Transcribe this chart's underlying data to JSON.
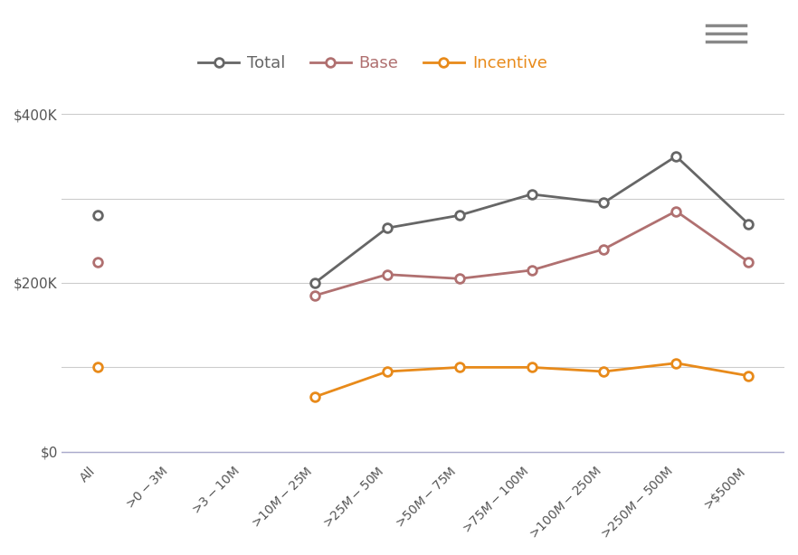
{
  "categories": [
    "All",
    ">$0-$3M",
    ">$3-$10M",
    ">$10M-$25M",
    ">$25M-$50M",
    ">$50M-$75M",
    ">$75M-$100M",
    ">$100M-$250M",
    ">$250M-$500M",
    ">$500M"
  ],
  "total": [
    280000,
    null,
    null,
    200000,
    265000,
    280000,
    305000,
    295000,
    350000,
    270000
  ],
  "base": [
    225000,
    null,
    null,
    185000,
    210000,
    205000,
    215000,
    240000,
    285000,
    225000
  ],
  "incentive": [
    100000,
    null,
    null,
    65000,
    95000,
    100000,
    100000,
    95000,
    105000,
    90000
  ],
  "total_color": "#666666",
  "base_color": "#b07070",
  "incentive_color": "#e88a1a",
  "marker_style": "o",
  "marker_size": 7,
  "line_width": 2,
  "legend_labels": [
    "Total",
    "Base",
    "Incentive"
  ],
  "yticks": [
    0,
    100000,
    200000,
    300000,
    400000
  ],
  "ytick_labels": [
    "$0",
    "",
    "$200K",
    "",
    "$400K"
  ],
  "ylim": [
    -10000,
    430000
  ],
  "background_color": "#ffffff",
  "grid_color": "#cccccc",
  "tick_fontsize": 11,
  "legend_fontsize": 13
}
